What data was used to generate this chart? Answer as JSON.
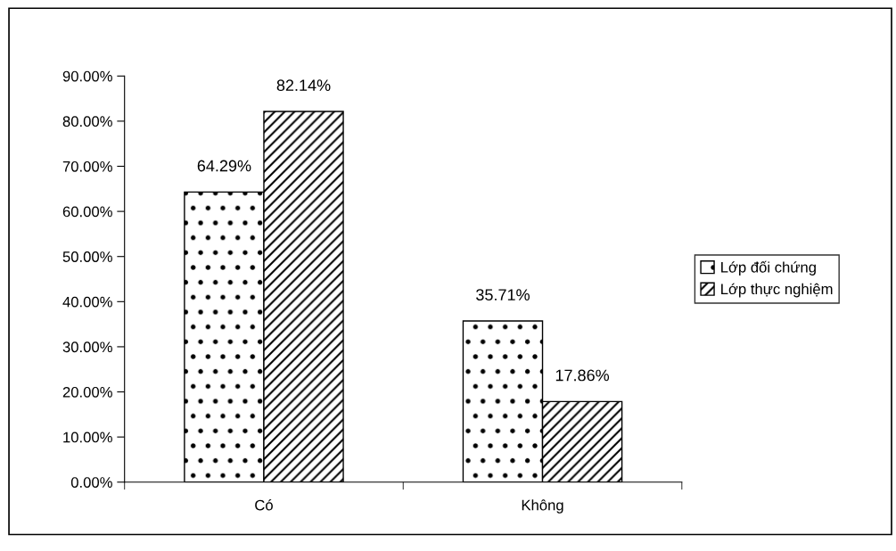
{
  "chart_data": {
    "type": "bar",
    "categories": [
      "Có",
      "Không"
    ],
    "series": [
      {
        "name": "Lớp đối chứng",
        "color": "#000000",
        "values": [
          64.29,
          35.71
        ],
        "value_labels": [
          "64.29%",
          "35.71%"
        ]
      },
      {
        "name": "Lớp thực nghiệm",
        "color": "#000000",
        "values": [
          82.14,
          17.86
        ],
        "value_labels": [
          "82.14%",
          "17.86%"
        ]
      }
    ],
    "ylim": [
      0,
      90
    ],
    "yticks": [
      {
        "value": 0,
        "label": "0.00%"
      },
      {
        "value": 10,
        "label": "10.00%"
      },
      {
        "value": 20,
        "label": "20.00%"
      },
      {
        "value": 30,
        "label": "30.00%"
      },
      {
        "value": 40,
        "label": "40.00%"
      },
      {
        "value": 50,
        "label": "50.00%"
      },
      {
        "value": 60,
        "label": "60.00%"
      },
      {
        "value": 70,
        "label": "70.00%"
      },
      {
        "value": 80,
        "label": "80.00%"
      },
      {
        "value": 90,
        "label": "90.00%"
      }
    ],
    "grid": false,
    "legend": "right"
  }
}
